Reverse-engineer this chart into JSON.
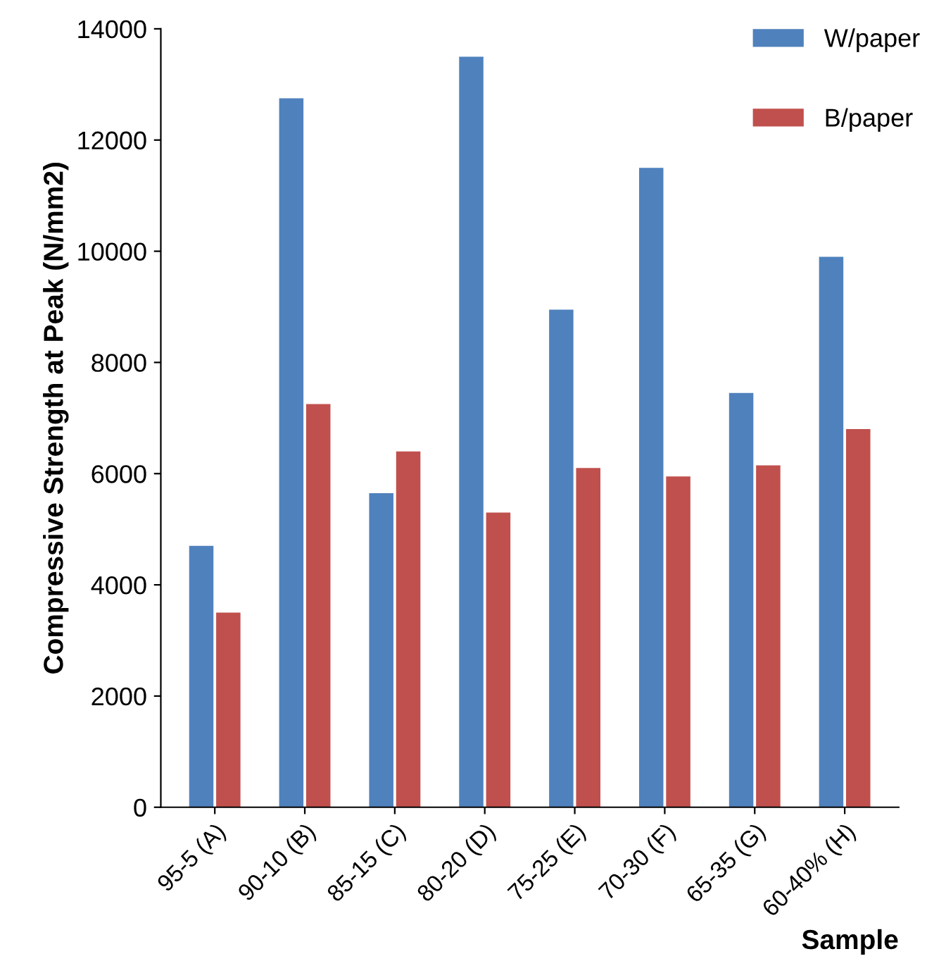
{
  "chart_data": {
    "type": "bar",
    "xlabel": "Sample",
    "ylabel": "Compressive Strength at Peak (N/mm2)",
    "categories": [
      "95-5 (A)",
      "90-10 (B)",
      "85-15 (C)",
      "80-20 (D)",
      "75-25 (E)",
      "70-30 (F)",
      "65-35 (G)",
      "60-40% (H)"
    ],
    "series": [
      {
        "name": "W/paper",
        "color": "#4f81bd",
        "values": [
          4700,
          12750,
          5650,
          13500,
          8950,
          11500,
          7450,
          9900
        ]
      },
      {
        "name": "B/paper",
        "color": "#c0504d",
        "values": [
          3500,
          7250,
          6400,
          5300,
          6100,
          5950,
          6150,
          6800
        ]
      }
    ],
    "ylim": [
      0,
      14000
    ],
    "yticks": [
      0,
      2000,
      4000,
      6000,
      8000,
      10000,
      12000,
      14000
    ],
    "grid": false,
    "legend": "top right"
  }
}
